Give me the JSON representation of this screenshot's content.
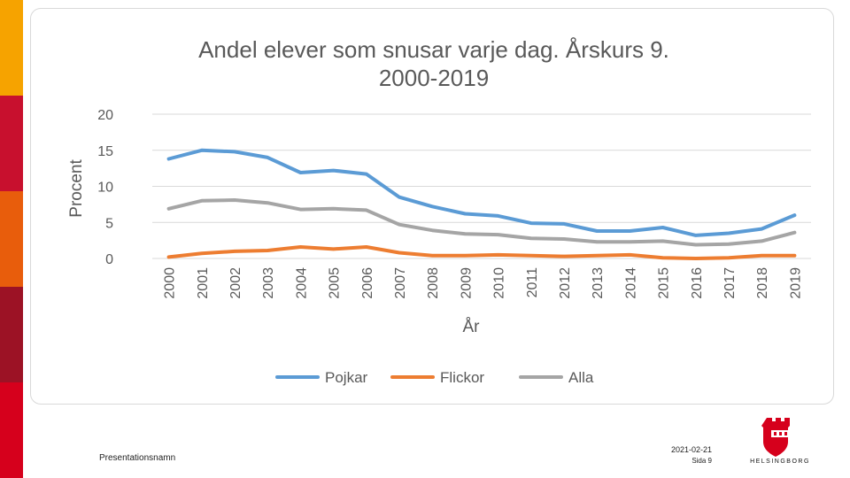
{
  "side_bar": {
    "colors": [
      "#f6a300",
      "#c8102e",
      "#e85d0c",
      "#9c1225",
      "#d6001c"
    ]
  },
  "footer": {
    "presentation_name": "Presentationsnamn",
    "date": "2021-02-21",
    "page": "Sida 9"
  },
  "logo": {
    "icon": "helsingborg-crest-icon",
    "text": "HELSINGBORG",
    "color": "#d6001c"
  },
  "chart_data": {
    "type": "line",
    "title": "Andel elever som snusar varje dag. Årskurs 9.",
    "subtitle": "2000-2019",
    "xlabel": "År",
    "ylabel": "Procent",
    "ylim": [
      0,
      20
    ],
    "yticks": [
      "0",
      "5",
      "10",
      "15",
      "20"
    ],
    "grid": true,
    "legend_position": "bottom",
    "categories": [
      "2000",
      "2001",
      "2002",
      "2003",
      "2004",
      "2005",
      "2006",
      "2007",
      "2008",
      "2009",
      "2010",
      "2011",
      "2012",
      "2013",
      "2014",
      "2015",
      "2016",
      "2017",
      "2018",
      "2019"
    ],
    "series": [
      {
        "name": "Pojkar",
        "color": "#5b9bd5",
        "values": [
          13.8,
          15.0,
          14.8,
          14.0,
          11.9,
          12.2,
          11.7,
          8.5,
          7.2,
          6.2,
          5.9,
          4.9,
          4.8,
          3.8,
          3.8,
          4.3,
          3.2,
          3.5,
          4.1,
          6.0
        ]
      },
      {
        "name": "Flickor",
        "color": "#ed7d31",
        "values": [
          0.2,
          0.7,
          1.0,
          1.1,
          1.6,
          1.3,
          1.6,
          0.8,
          0.4,
          0.4,
          0.5,
          0.4,
          0.3,
          0.4,
          0.5,
          0.1,
          0.0,
          0.1,
          0.4,
          0.4
        ]
      },
      {
        "name": "Alla",
        "color": "#a5a5a5",
        "values": [
          6.9,
          8.0,
          8.1,
          7.7,
          6.8,
          6.9,
          6.7,
          4.7,
          3.9,
          3.4,
          3.3,
          2.8,
          2.7,
          2.3,
          2.3,
          2.4,
          1.9,
          2.0,
          2.4,
          3.6
        ]
      }
    ]
  }
}
